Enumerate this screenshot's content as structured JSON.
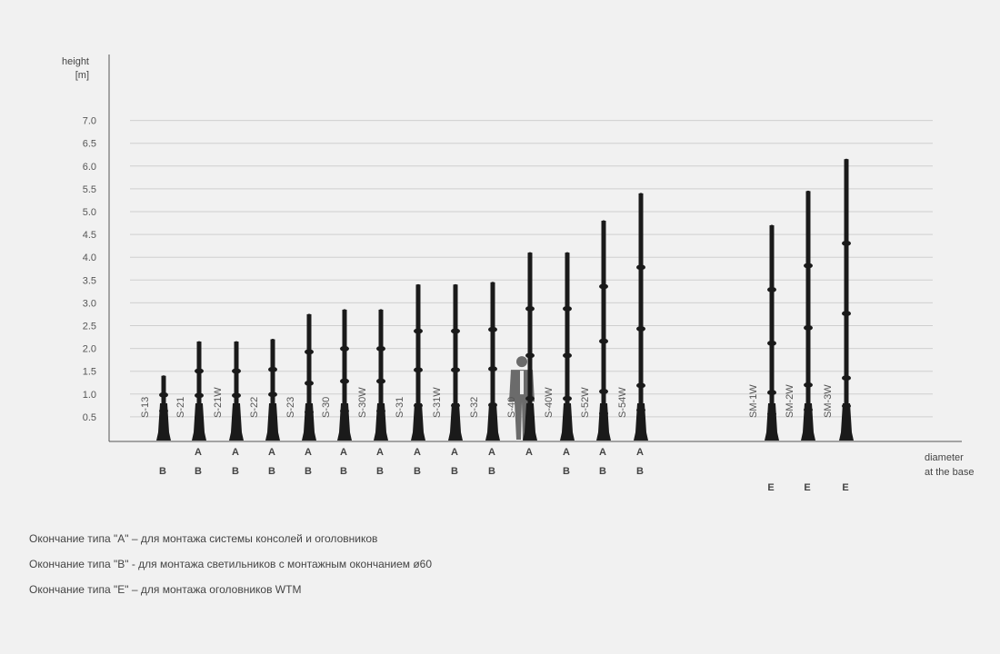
{
  "chart_data": {
    "type": "bar",
    "ylabel": "height",
    "yunit": "[m]",
    "xlabel_line1": "diameter",
    "xlabel_line2": "at the base",
    "yticks": [
      "0.5",
      "1.0",
      "1.5",
      "2.0",
      "2.5",
      "3.0",
      "3.5",
      "4.0",
      "4.5",
      "5.0",
      "5.5",
      "6.0",
      "6.5",
      "7.0"
    ],
    "ylim": [
      0,
      7.0
    ],
    "grid": true,
    "bar_color": "#1a1a1a",
    "categories": [
      "S-13",
      "S-21",
      "S-21W",
      "S-22",
      "S-23",
      "S-30",
      "S-30W",
      "S-31",
      "S-31W",
      "S-32",
      "S-40",
      "S-40W",
      "S-52W",
      "S-54W",
      "SM-1W",
      "SM-2W",
      "SM-3W"
    ],
    "values": [
      1.4,
      2.15,
      2.15,
      2.2,
      2.75,
      2.85,
      2.85,
      3.4,
      3.4,
      3.45,
      4.1,
      4.1,
      4.8,
      5.4,
      4.7,
      5.45,
      6.15
    ],
    "endings": [
      [
        "B"
      ],
      [
        "A",
        "B"
      ],
      [
        "A",
        "B"
      ],
      [
        "A",
        "B"
      ],
      [
        "A",
        "B"
      ],
      [
        "A",
        "B"
      ],
      [
        "A",
        "B"
      ],
      [
        "A",
        "B"
      ],
      [
        "A",
        "B"
      ],
      [
        "A",
        "B"
      ],
      [
        "A"
      ],
      [
        "A",
        "B"
      ],
      [
        "A",
        "B"
      ],
      [
        "A",
        "B"
      ],
      [
        "E"
      ],
      [
        "E"
      ],
      [
        "E"
      ]
    ],
    "person_scale_height": 1.85
  },
  "legend": [
    "Окончание типа \"A\" – для монтажа системы консолей и оголовников",
    "Окончание типа \"B\" - для монтажа светильников с монтажным окончанием ø60",
    "Окончание типа \"E\" – для монтажа оголовников WTM"
  ]
}
